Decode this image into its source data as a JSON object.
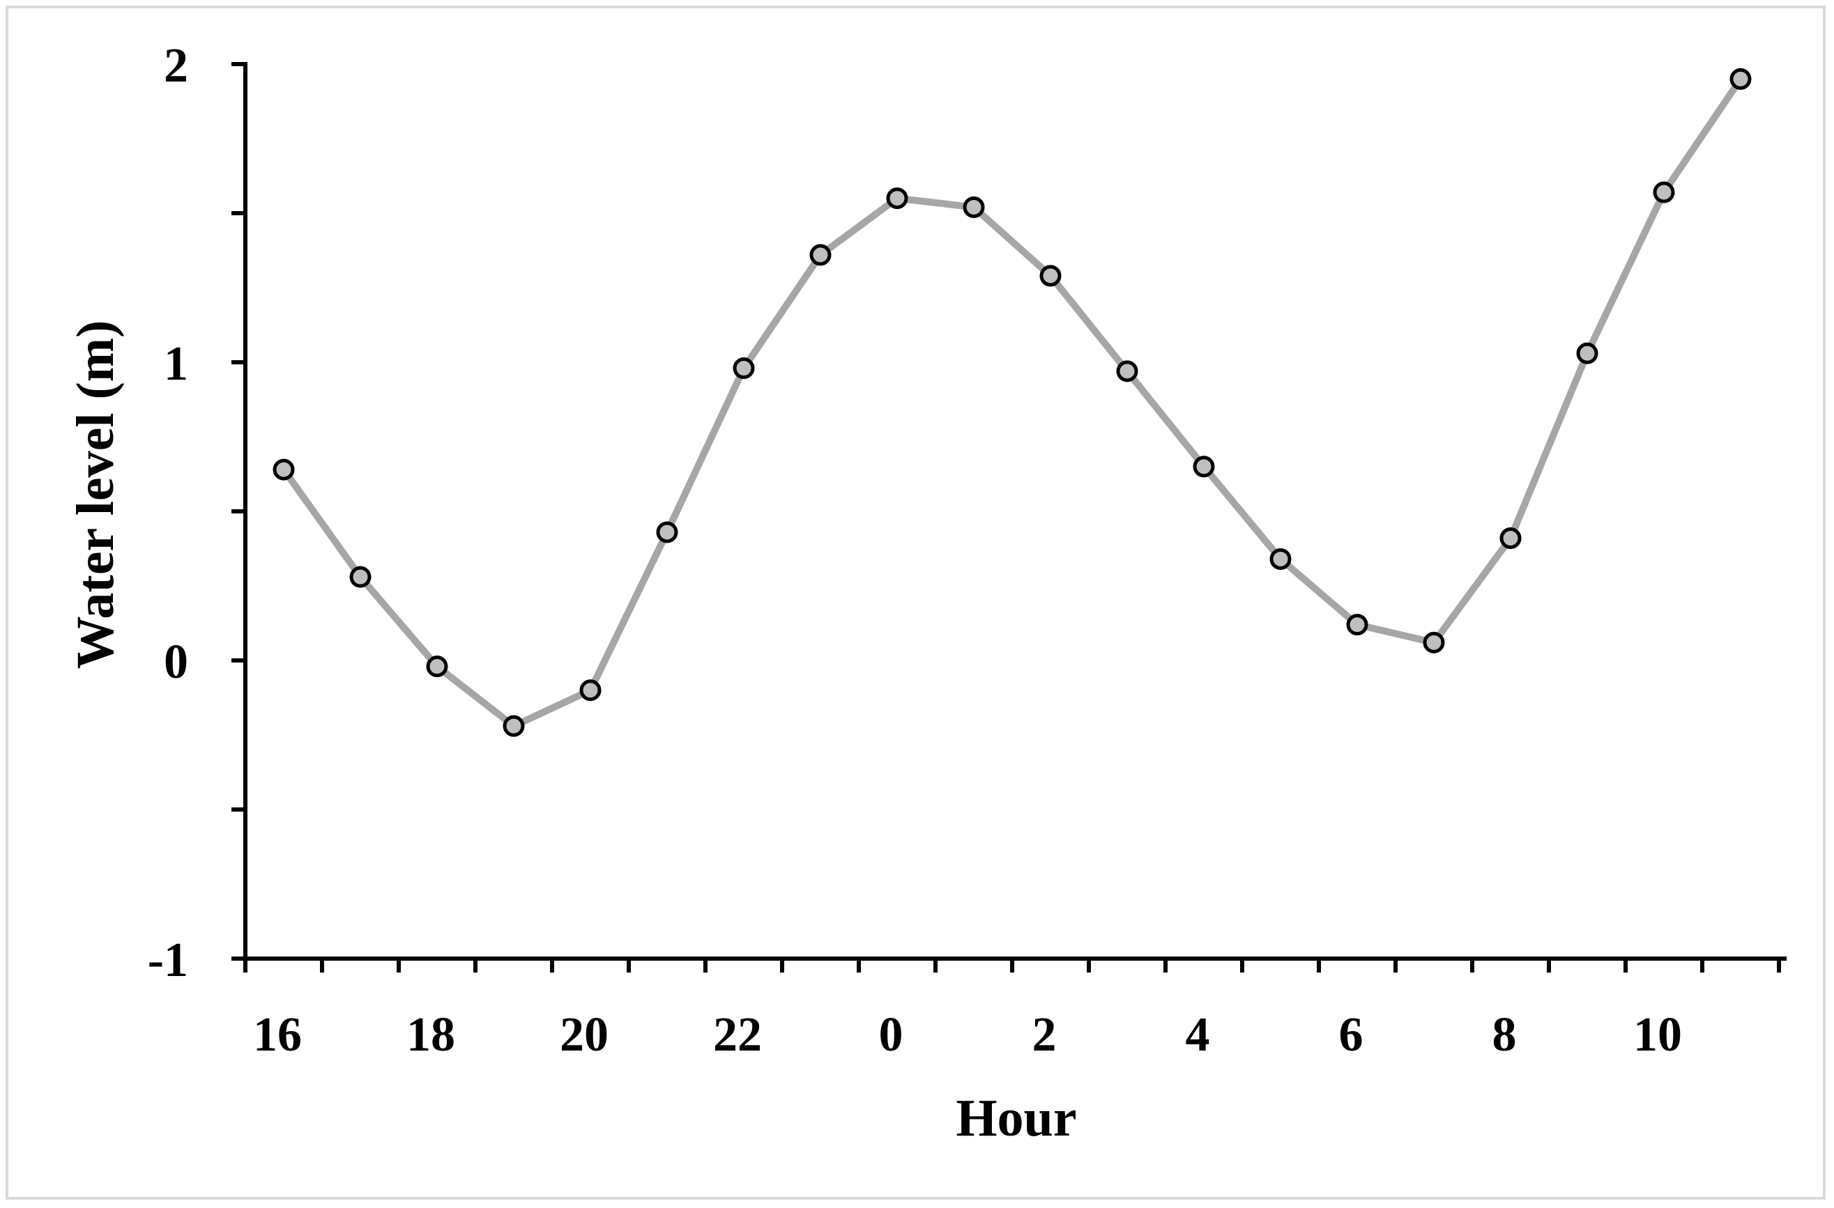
{
  "chart_data": {
    "type": "line",
    "title": "",
    "xlabel": "Hour",
    "ylabel": "Water level (m)",
    "x_tick_labels": [
      "16",
      "18",
      "20",
      "22",
      "0",
      "2",
      "4",
      "6",
      "8",
      "10"
    ],
    "y_tick_labels": [
      "2",
      "1",
      "0",
      "-1"
    ],
    "ylim": [
      -1,
      2
    ],
    "grid": false,
    "legend": "none",
    "series": [
      {
        "x": [
          "16:30",
          "17:30",
          "18:30",
          "19:30",
          "20:30",
          "21:30",
          "22:30",
          "23:30",
          "00:30",
          "01:30",
          "02:30",
          "03:30",
          "04:30",
          "05:30",
          "06:30",
          "07:30",
          "08:30",
          "09:30",
          "10:30",
          "11:30"
        ],
        "values": [
          0.64,
          0.28,
          -0.02,
          -0.22,
          -0.1,
          0.43,
          0.98,
          1.36,
          1.55,
          1.52,
          1.29,
          0.97,
          0.65,
          0.34,
          0.12,
          0.06,
          0.41,
          1.03,
          1.57,
          1.95
        ],
        "line_color": "#a6a6a6",
        "marker_fill": "#bfbfbf",
        "marker_edge": "#000000"
      }
    ]
  }
}
